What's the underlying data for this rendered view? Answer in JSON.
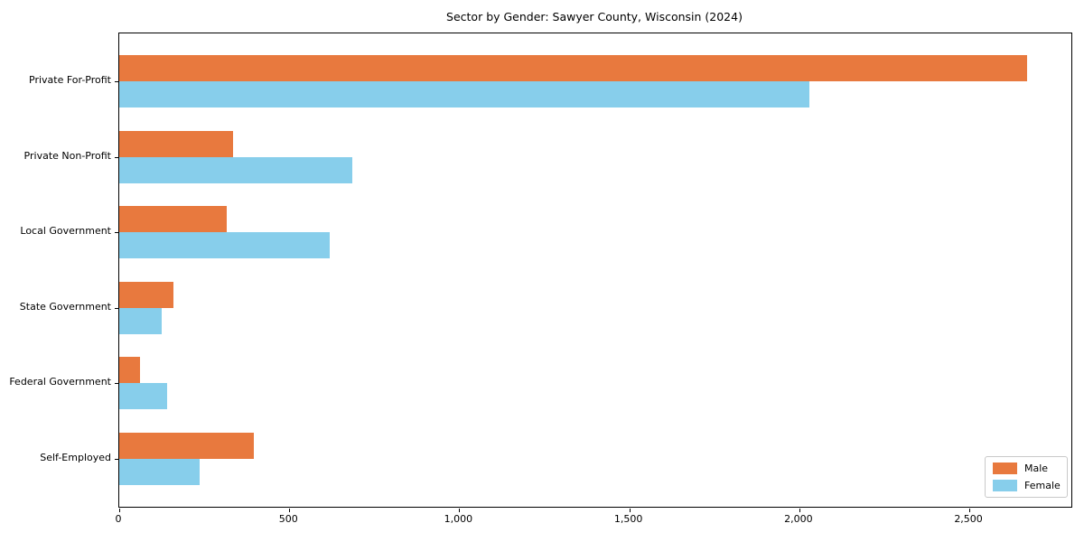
{
  "title": "Sector by Gender: Sawyer County, Wisconsin (2024)",
  "chart_data": {
    "type": "bar",
    "orientation": "horizontal",
    "title": "Sector by Gender: Sawyer County, Wisconsin (2024)",
    "xlabel": "",
    "ylabel": "",
    "categories": [
      "Private For-Profit",
      "Private Non-Profit",
      "Local Government",
      "State Government",
      "Federal Government",
      "Self-Employed"
    ],
    "series": [
      {
        "name": "Male",
        "color": "#e8793e",
        "values": [
          2670,
          335,
          315,
          160,
          60,
          395
        ]
      },
      {
        "name": "Female",
        "color": "#87ceeb",
        "values": [
          2030,
          685,
          620,
          125,
          140,
          235
        ]
      }
    ],
    "xlim": [
      0,
      2800
    ],
    "xticks": [
      0,
      500,
      1000,
      1500,
      2000,
      2500
    ],
    "xtick_labels": [
      "0",
      "500",
      "1,000",
      "1,500",
      "2,000",
      "2,500"
    ],
    "grid": false,
    "legend": {
      "position": "lower right",
      "entries": [
        "Male",
        "Female"
      ]
    }
  }
}
